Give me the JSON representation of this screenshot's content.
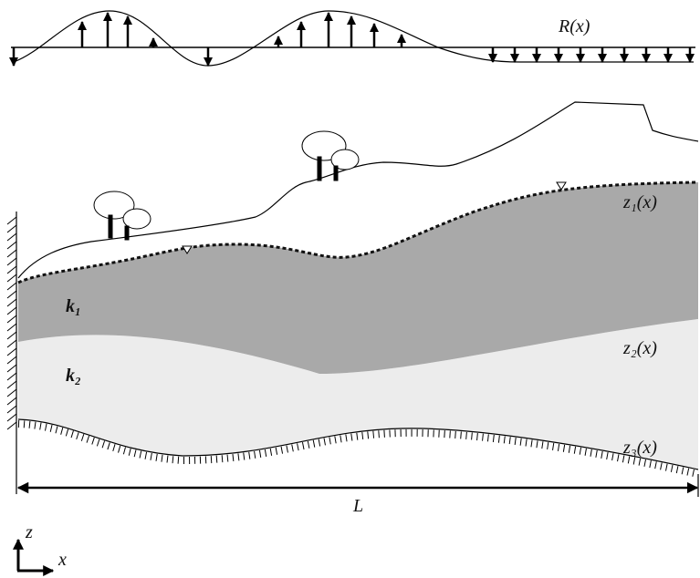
{
  "recharge_label": "R(x)",
  "layers": {
    "water_table_label": "z₁(x)",
    "interface_label": "z₂(x)",
    "bedrock_label": "z₃(x)",
    "upper_conductivity": "k₁",
    "lower_conductivity": "k₂"
  },
  "length_label": "L",
  "axes": {
    "vertical": "z",
    "horizontal": "x"
  }
}
